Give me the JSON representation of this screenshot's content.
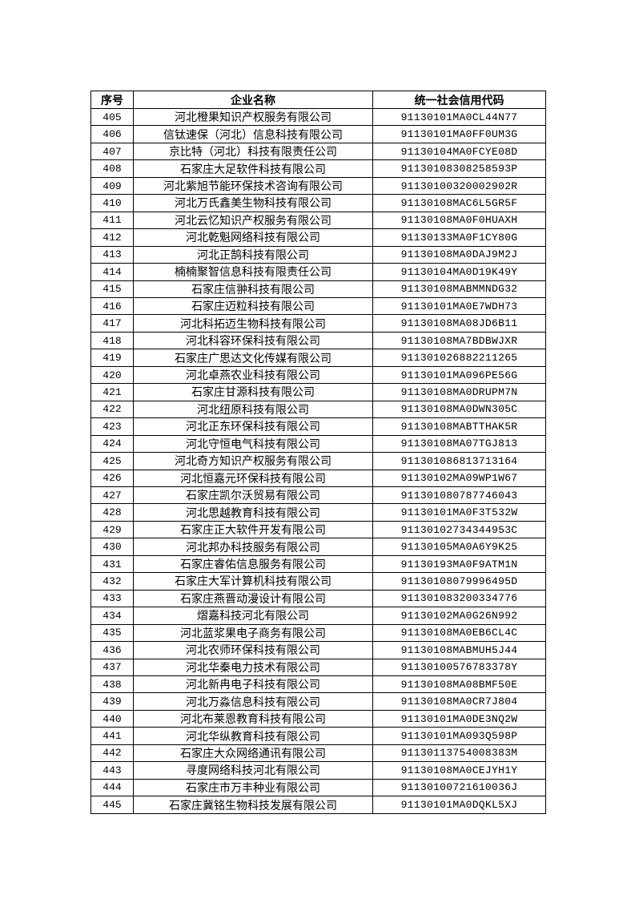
{
  "table": {
    "headers": [
      "序号",
      "企业名称",
      "统一社会信用代码"
    ],
    "rows": [
      [
        "405",
        "河北橙果知识产权服务有限公司",
        "91130101MA0CL44N77"
      ],
      [
        "406",
        "信钛速保（河北）信息科技有限公司",
        "91130101MA0FF0UM3G"
      ],
      [
        "407",
        "京比特（河北）科技有限责任公司",
        "91130104MA0FCYE08D"
      ],
      [
        "408",
        "石家庄大足软件科技有限公司",
        "91130108308258593P"
      ],
      [
        "409",
        "河北紫旭节能环保技术咨询有限公司",
        "91130100320002902R"
      ],
      [
        "410",
        "河北万氏鑫美生物科技有限公司",
        "91130108MAC6L5GR5F"
      ],
      [
        "411",
        "河北云忆知识产权服务有限公司",
        "91130108MA0F0HUAXH"
      ],
      [
        "412",
        "河北乾魁网络科技有限公司",
        "91130133MA0F1CY80G"
      ],
      [
        "413",
        "河北正鹄科技有限公司",
        "91130108MA0DAJ9M2J"
      ],
      [
        "414",
        "楠楠聚智信息科技有限责任公司",
        "91130104MA0D19K49Y"
      ],
      [
        "415",
        "石家庄信翀科技有限公司",
        "91130108MABMMNDG32"
      ],
      [
        "416",
        "石家庄迈粒科技有限公司",
        "91130101MA0E7WDH73"
      ],
      [
        "417",
        "河北科拓迈生物科技有限公司",
        "91130108MA08JD6B11"
      ],
      [
        "418",
        "河北科容环保科技有限公司",
        "91130108MA7BDBWJXR"
      ],
      [
        "419",
        "石家庄广思达文化传媒有限公司",
        "911301026882211265"
      ],
      [
        "420",
        "河北卓燕农业科技有限公司",
        "91130101MA096PE56G"
      ],
      [
        "421",
        "石家庄甘源科技有限公司",
        "91130108MA0DRUPM7N"
      ],
      [
        "422",
        "河北纽原科技有限公司",
        "91130108MA0DWN305C"
      ],
      [
        "423",
        "河北正东环保科技有限公司",
        "91130108MABTTHAK5R"
      ],
      [
        "424",
        "河北守恒电气科技有限公司",
        "91130108MA07TGJ813"
      ],
      [
        "425",
        "河北奇方知识产权服务有限公司",
        "911301086813713164"
      ],
      [
        "426",
        "河北恒嘉元环保科技有限公司",
        "91130102MA09WP1W67"
      ],
      [
        "427",
        "石家庄凯尔沃贸易有限公司",
        "911301080787746043"
      ],
      [
        "428",
        "河北思越教育科技有限公司",
        "91130101MA0F3T532W"
      ],
      [
        "429",
        "石家庄正大软件开发有限公司",
        "91130102734344953C"
      ],
      [
        "430",
        "河北邦办科技服务有限公司",
        "91130105MA0A6Y9K25"
      ],
      [
        "431",
        "石家庄睿佑信息服务有限公司",
        "91130193MA0F9ATM1N"
      ],
      [
        "432",
        "石家庄大军计算机科技有限公司",
        "91130108079996495D"
      ],
      [
        "433",
        "石家庄燕晋动漫设计有限公司",
        "911301083200334776"
      ],
      [
        "434",
        "熠嘉科技河北有限公司",
        "91130102MA0G26N992"
      ],
      [
        "435",
        "河北蓝浆果电子商务有限公司",
        "91130108MA0EB6CL4C"
      ],
      [
        "436",
        "河北农师环保科技有限公司",
        "91130108MABMUH5J44"
      ],
      [
        "437",
        "河北华秦电力技术有限公司",
        "91130100576783378Y"
      ],
      [
        "438",
        "河北新冉电子科技有限公司",
        "91130108MA08BMF50E"
      ],
      [
        "439",
        "河北万淼信息科技有限公司",
        "91130108MA0CR7J804"
      ],
      [
        "440",
        "河北布莱恩教育科技有限公司",
        "91130101MA0DE3NQ2W"
      ],
      [
        "441",
        "河北华纵教育科技有限公司",
        "91130101MA093Q598P"
      ],
      [
        "442",
        "石家庄大众网络通讯有限公司",
        "91130113754008383M"
      ],
      [
        "443",
        "寻度网络科技河北有限公司",
        "91130108MA0CEJYH1Y"
      ],
      [
        "444",
        "石家庄市万丰种业有限公司",
        "91130100721610036J"
      ],
      [
        "445",
        "石家庄冀铭生物科技发展有限公司",
        "91130101MA0DQKL5XJ"
      ]
    ]
  }
}
